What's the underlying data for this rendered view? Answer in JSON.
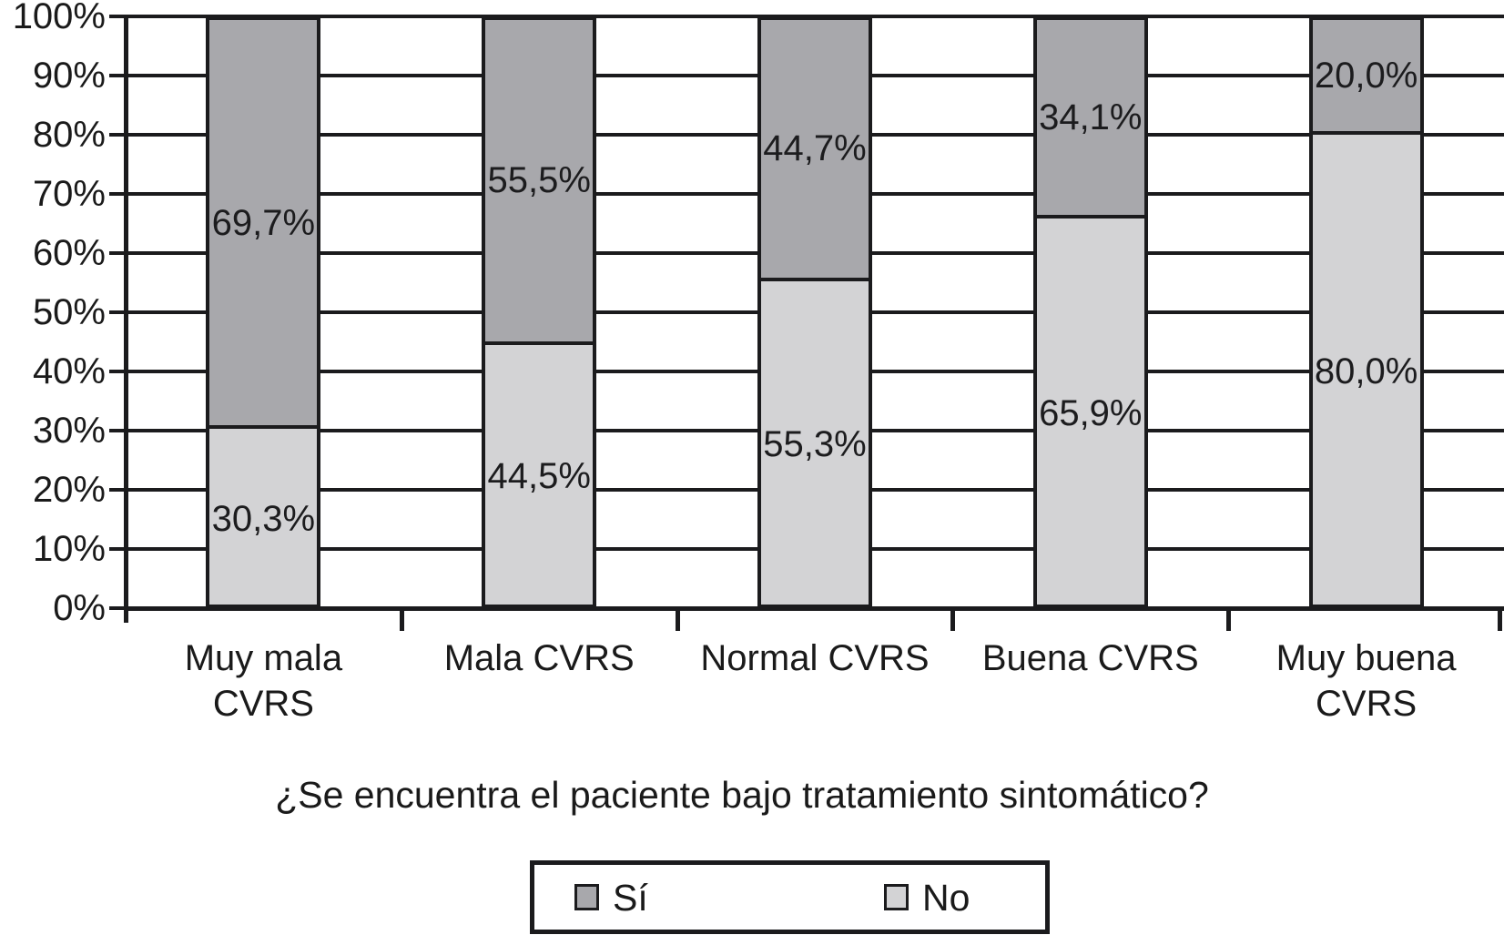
{
  "chart_data": {
    "type": "bar",
    "stacked": true,
    "percent_stacked": true,
    "title": "",
    "xlabel": "¿Se encuentra el paciente bajo tratamiento sintomático?",
    "ylabel": "",
    "ylim": [
      0,
      100
    ],
    "grid": true,
    "legend_position": "bottom",
    "categories": [
      "Muy mala CVRS",
      "Mala CVRS",
      "Normal CVRS",
      "Buena CVRS",
      "Muy buena CVRS"
    ],
    "category_label_lines": [
      [
        "Muy mala",
        "CVRS"
      ],
      [
        "Mala CVRS"
      ],
      [
        "Normal CVRS"
      ],
      [
        "Buena CVRS"
      ],
      [
        "Muy buena",
        "CVRS"
      ]
    ],
    "ytick_labels": [
      "0%",
      "10%",
      "20%",
      "30%",
      "40%",
      "50%",
      "60%",
      "70%",
      "80%",
      "90%",
      "100%"
    ],
    "series": [
      {
        "name": "Sí",
        "stack_position": "top",
        "color": "#a8a8ac",
        "values": [
          69.7,
          55.5,
          44.7,
          34.1,
          20.0
        ],
        "data_labels": [
          "69,7%",
          "55,5%",
          "44,7%",
          "34,1%",
          "20,0%"
        ]
      },
      {
        "name": "No",
        "stack_position": "bottom",
        "color": "#d3d3d5",
        "values": [
          30.3,
          44.5,
          55.3,
          65.9,
          80.0
        ],
        "data_labels": [
          "30,3%",
          "44,5%",
          "55,3%",
          "65,9%",
          "80,0%"
        ]
      }
    ]
  },
  "colors": {
    "si_fill": "#a8a8ac",
    "no_fill": "#d3d3d5",
    "line": "#1b1b1d",
    "text": "#1a1a1a",
    "background": "#ffffff"
  }
}
